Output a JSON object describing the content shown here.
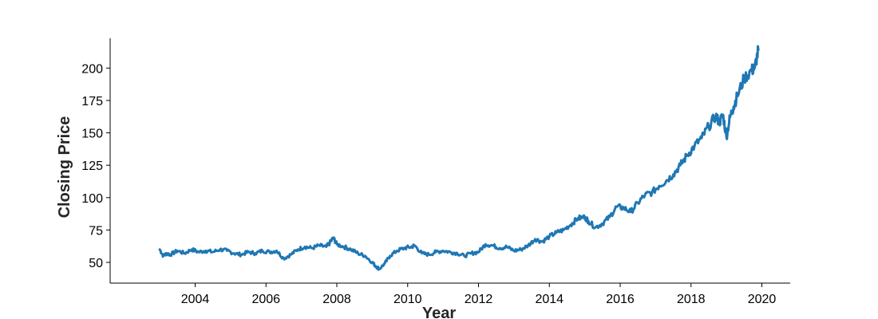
{
  "chart_data": {
    "type": "line",
    "title": "",
    "xlabel": "Year",
    "ylabel": "Closing Price",
    "xlim": [
      2001.6,
      2020.8
    ],
    "ylim": [
      34,
      223
    ],
    "x_ticks": [
      "2004",
      "2006",
      "2008",
      "2010",
      "2012",
      "2014",
      "2016",
      "2018",
      "2020"
    ],
    "y_ticks": [
      "50",
      "75",
      "100",
      "125",
      "150",
      "175",
      "200"
    ],
    "grid": false,
    "legend": "none",
    "series": [
      {
        "color": "#1f77b4",
        "x": [
          2003.0,
          2003.1,
          2003.2,
          2003.3,
          2003.5,
          2003.7,
          2003.9,
          2004.1,
          2004.3,
          2004.5,
          2004.7,
          2004.9,
          2005.1,
          2005.3,
          2005.5,
          2005.7,
          2005.9,
          2006.1,
          2006.3,
          2006.5,
          2006.7,
          2006.9,
          2007.1,
          2007.3,
          2007.5,
          2007.7,
          2007.8,
          2007.9,
          2008.0,
          2008.2,
          2008.4,
          2008.6,
          2008.8,
          2009.0,
          2009.1,
          2009.2,
          2009.35,
          2009.5,
          2009.7,
          2009.9,
          2010.1,
          2010.2,
          2010.4,
          2010.6,
          2010.8,
          2011.0,
          2011.2,
          2011.4,
          2011.6,
          2011.8,
          2012.0,
          2012.2,
          2012.4,
          2012.6,
          2012.8,
          2013.0,
          2013.2,
          2013.4,
          2013.6,
          2013.8,
          2014.0,
          2014.2,
          2014.4,
          2014.6,
          2014.8,
          2015.0,
          2015.1,
          2015.3,
          2015.5,
          2015.7,
          2015.9,
          2016.1,
          2016.3,
          2016.5,
          2016.7,
          2016.9,
          2017.1,
          2017.3,
          2017.5,
          2017.7,
          2017.9,
          2018.1,
          2018.3,
          2018.5,
          2018.7,
          2018.8,
          2018.9,
          2019.0,
          2019.1,
          2019.2,
          2019.3,
          2019.5,
          2019.7,
          2019.8,
          2019.9
        ],
        "values": [
          60,
          55,
          57,
          56,
          59,
          57,
          60,
          58,
          59,
          58,
          60,
          59,
          57,
          56,
          58,
          57,
          59,
          58,
          59,
          53,
          56,
          60,
          62,
          61,
          63,
          62,
          65,
          69,
          64,
          62,
          60,
          57,
          55,
          50,
          47,
          45,
          49,
          55,
          59,
          61,
          62,
          63,
          57,
          56,
          58,
          59,
          58,
          57,
          55,
          57,
          58,
          64,
          63,
          61,
          62,
          59,
          60,
          63,
          68,
          66,
          70,
          73,
          75,
          79,
          84,
          85,
          82,
          77,
          80,
          85,
          93,
          92,
          89,
          96,
          102,
          104,
          109,
          113,
          118,
          125,
          133,
          140,
          146,
          155,
          163,
          158,
          164,
          147,
          162,
          170,
          178,
          192,
          198,
          200,
          214
        ]
      }
    ]
  }
}
